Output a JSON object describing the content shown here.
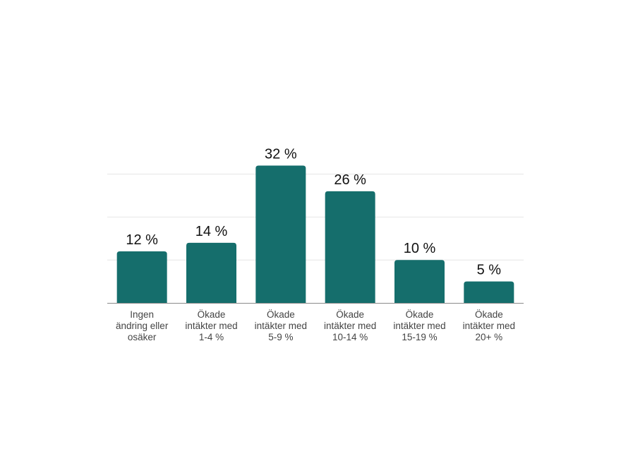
{
  "chart_data": {
    "type": "bar",
    "categories": [
      [
        "Ingen",
        "ändring eller",
        "osäker"
      ],
      [
        "Ökade",
        "intäkter med",
        "1-4 %"
      ],
      [
        "Ökade",
        "intäkter med",
        "5-9 %"
      ],
      [
        "Ökade",
        "intäkter med",
        "10-14 %"
      ],
      [
        "Ökade",
        "intäkter med",
        "15-19 %"
      ],
      [
        "Ökade",
        "intäkter med",
        "20+ %"
      ]
    ],
    "values": [
      12,
      14,
      32,
      26,
      10,
      5
    ],
    "data_labels": [
      "12 %",
      "14 %",
      "32 %",
      "26 %",
      "10 %",
      "5 %"
    ],
    "ylim": [
      0,
      35
    ],
    "grid": true,
    "colors": {
      "bar": "#156e6c",
      "grid": "#e6e6e6",
      "axis": "#8a8a8a"
    }
  }
}
